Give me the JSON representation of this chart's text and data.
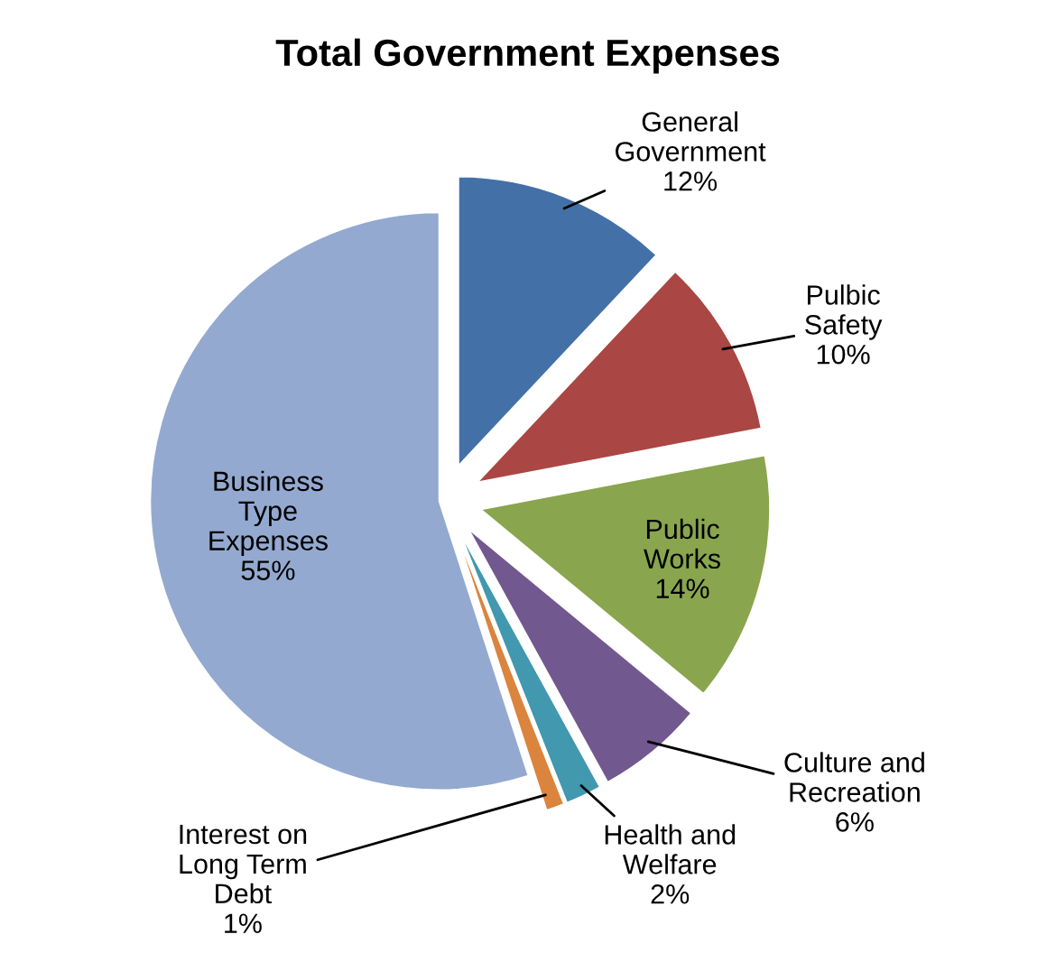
{
  "chart_data": {
    "type": "pie",
    "title": "Total Government Expenses",
    "categories": [
      "General\nGovernment",
      "Pulbic\nSafety",
      "Public\nWorks",
      "Culture and\nRecreation",
      "Health and\nWelfare",
      "Interest on\nLong Term\nDebt",
      "Business\nType\nExpenses"
    ],
    "values": [
      12,
      10,
      14,
      6,
      2,
      1,
      55
    ],
    "colors": [
      "#4470a8",
      "#aa4643",
      "#89a54e",
      "#71588f",
      "#4198af",
      "#db843d",
      "#93a9d0"
    ],
    "value_labels": [
      "12%",
      "10%",
      "14%",
      "6%",
      "2%",
      "1%",
      "55%"
    ],
    "legend": false
  }
}
